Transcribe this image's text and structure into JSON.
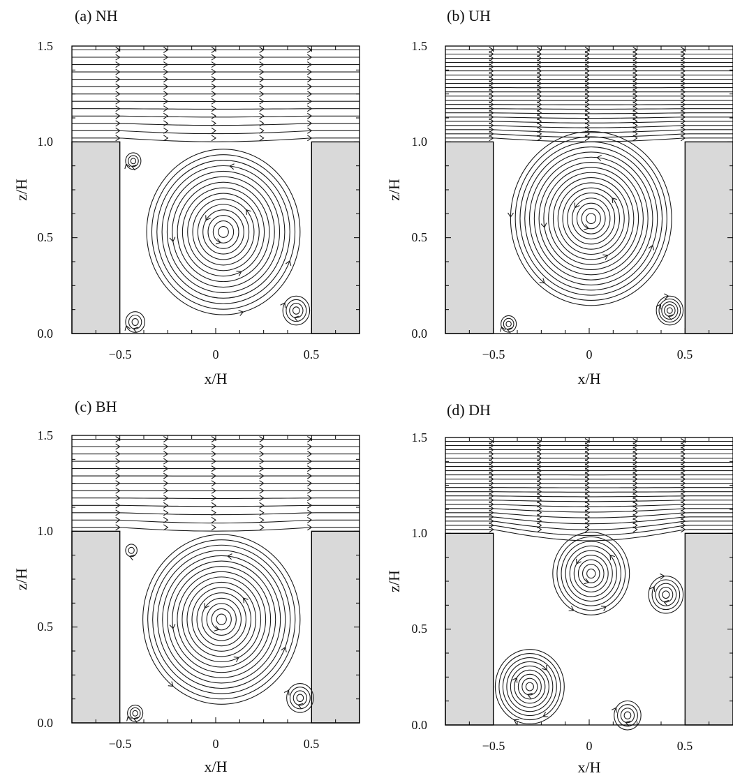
{
  "x_label": "x/H",
  "y_label": "z/H",
  "x_ticks": [
    "−0.5",
    "0",
    "0.5"
  ],
  "y_ticks": [
    "0.0",
    "0.5",
    "1.0",
    "1.5"
  ],
  "colors": {
    "building": "#d9d9d9",
    "line": "#1a1a1a",
    "frame": "#000000"
  },
  "panels": [
    {
      "label": "(a) NH",
      "case": "NH",
      "vortices": [
        {
          "x": 0.04,
          "z": 0.53,
          "r": 0.4,
          "k": 15,
          "dir": "cw"
        },
        {
          "x": -0.43,
          "z": 0.9,
          "r": 0.04,
          "k": 3,
          "dir": "ccw"
        },
        {
          "x": 0.42,
          "z": 0.12,
          "r": 0.07,
          "k": 4,
          "dir": "ccw"
        },
        {
          "x": -0.42,
          "z": 0.06,
          "r": 0.05,
          "k": 3,
          "dir": "ccw"
        }
      ]
    },
    {
      "label": "(b) UH",
      "case": "UH",
      "vortices": [
        {
          "x": 0.01,
          "z": 0.6,
          "r": 0.42,
          "k": 17,
          "dir": "cw"
        },
        {
          "x": 0.42,
          "z": 0.12,
          "r": 0.07,
          "k": 5,
          "dir": "ccw"
        },
        {
          "x": -0.42,
          "z": 0.05,
          "r": 0.04,
          "k": 3,
          "dir": "ccw"
        }
      ]
    },
    {
      "label": "(c) BH",
      "case": "BH",
      "vortices": [
        {
          "x": 0.03,
          "z": 0.54,
          "r": 0.41,
          "k": 16,
          "dir": "cw"
        },
        {
          "x": -0.44,
          "z": 0.9,
          "r": 0.03,
          "k": 2,
          "dir": "ccw"
        },
        {
          "x": 0.44,
          "z": 0.13,
          "r": 0.07,
          "k": 4,
          "dir": "ccw"
        },
        {
          "x": -0.42,
          "z": 0.05,
          "r": 0.04,
          "k": 3,
          "dir": "ccw"
        }
      ]
    },
    {
      "label": "(d) DH",
      "case": "DH",
      "vortices": [
        {
          "x": 0.01,
          "z": 0.79,
          "r": 0.2,
          "k": 9,
          "dir": "cw"
        },
        {
          "x": -0.31,
          "z": 0.2,
          "r": 0.18,
          "k": 9,
          "dir": "ccw"
        },
        {
          "x": 0.4,
          "z": 0.68,
          "r": 0.09,
          "k": 5,
          "dir": "ccw"
        },
        {
          "x": 0.2,
          "z": 0.05,
          "r": 0.07,
          "k": 4,
          "dir": "ccw"
        }
      ]
    }
  ]
}
